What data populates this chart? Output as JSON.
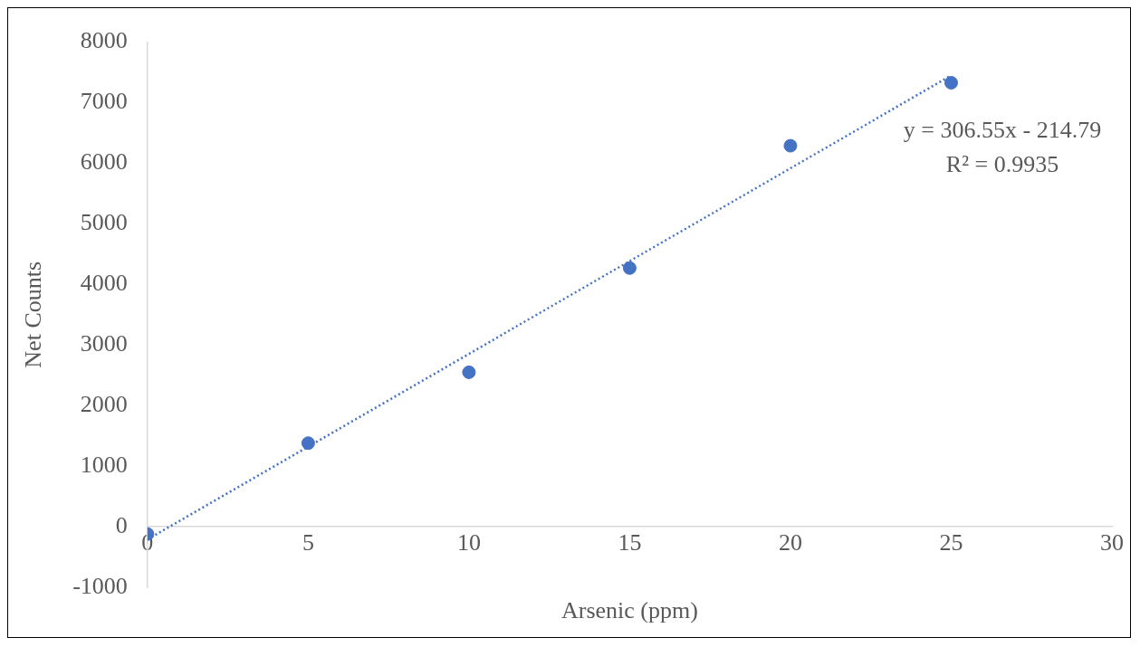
{
  "chart_data": {
    "type": "scatter",
    "xlabel": "Arsenic (ppm)",
    "ylabel": "Net Counts",
    "series": [
      {
        "color": "#4472c4",
        "x": [
          0,
          5,
          10,
          15,
          20,
          25
        ],
        "values": [
          -120,
          1380,
          2550,
          4270,
          6290,
          7330
        ],
        "marker": "circle"
      },
      {
        "type": "line",
        "color": "#4472c4",
        "x": [
          0,
          25
        ],
        "values": [
          -210,
          7450
        ],
        "line_style": "dotted",
        "marker": "none"
      }
    ],
    "xlim": [
      0,
      30
    ],
    "xticks": [
      0,
      5,
      10,
      15,
      20,
      25,
      30
    ],
    "ylim": [
      -1000,
      8000
    ],
    "yticks": [
      -1000,
      0,
      1000,
      2000,
      3000,
      4000,
      5000,
      6000,
      7000,
      8000
    ],
    "grid": false,
    "legend": false,
    "annotations": [
      "y = 306.55x - 214.79",
      "R² = 0.9935"
    ]
  }
}
